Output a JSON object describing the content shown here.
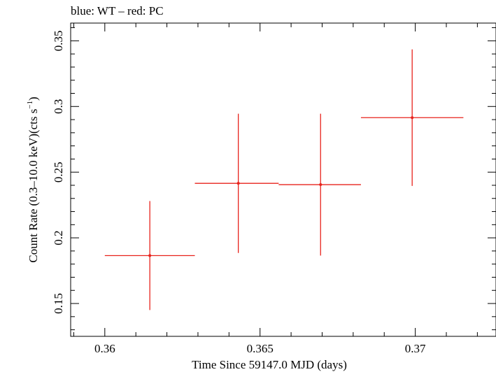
{
  "chart_data": {
    "type": "scatter",
    "title": "blue: WT – red: PC",
    "xlabel": "Time Since 59147.0 MJD (days)",
    "ylabel_main": "Count Rate (0.3–10.0 keV)(cts s",
    "ylabel_sup": "−1",
    "ylabel_close": ")",
    "xlim": [
      0.3589,
      0.3726
    ],
    "ylim": [
      0.125,
      0.3635
    ],
    "xticks": [
      {
        "value": 0.36,
        "label": "0.36"
      },
      {
        "value": 0.365,
        "label": "0.365"
      },
      {
        "value": 0.37,
        "label": "0.37"
      }
    ],
    "yticks": [
      {
        "value": 0.15,
        "label": "0.15"
      },
      {
        "value": 0.2,
        "label": "0.2"
      },
      {
        "value": 0.25,
        "label": "0.25"
      },
      {
        "value": 0.3,
        "label": "0.3"
      },
      {
        "value": 0.35,
        "label": "0.35"
      }
    ],
    "series": [
      {
        "name": "PC",
        "color": "#e8231c",
        "points": [
          {
            "x": 0.36145,
            "y": 0.1865,
            "xerr_lo": 0.00145,
            "xerr_hi": 0.00145,
            "yerr_lo": 0.0415,
            "yerr_hi": 0.0415
          },
          {
            "x": 0.3643,
            "y": 0.2415,
            "xerr_lo": 0.0014,
            "xerr_hi": 0.0013,
            "yerr_lo": 0.053,
            "yerr_hi": 0.053
          },
          {
            "x": 0.36695,
            "y": 0.2405,
            "xerr_lo": 0.00135,
            "xerr_hi": 0.0013,
            "yerr_lo": 0.054,
            "yerr_hi": 0.054
          },
          {
            "x": 0.3699,
            "y": 0.2915,
            "xerr_lo": 0.00165,
            "xerr_hi": 0.00165,
            "yerr_lo": 0.052,
            "yerr_hi": 0.052
          }
        ]
      }
    ]
  }
}
